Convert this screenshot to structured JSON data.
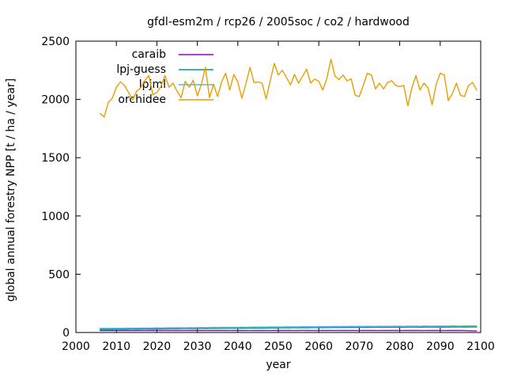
{
  "chart_data": {
    "type": "line",
    "title": "gfdl-esm2m / rcp26 / 2005soc / co2 / hardwood",
    "xlabel": "year",
    "ylabel": "global annual forestry NPP [t / ha / year]",
    "xlim": [
      2000,
      2100
    ],
    "ylim": [
      0,
      2500
    ],
    "xticks": [
      2000,
      2010,
      2020,
      2030,
      2040,
      2050,
      2060,
      2070,
      2080,
      2090,
      2100
    ],
    "yticks": [
      0,
      500,
      1000,
      1500,
      2000,
      2500
    ],
    "grid": false,
    "legend_position": "inside top-left",
    "background_color": "#ffffff",
    "axis_color": "#000000",
    "x_start": 2006,
    "x_step": 1,
    "series": [
      {
        "name": "caraib",
        "color": "#9400d3",
        "values": [
          17,
          16,
          17,
          17,
          16,
          17,
          18,
          17,
          16,
          17,
          17,
          16,
          17,
          18,
          17,
          17,
          16,
          17,
          17,
          18,
          17,
          16,
          17,
          17,
          18,
          17,
          16,
          17,
          17,
          18,
          17,
          17,
          16,
          17,
          18,
          17,
          17,
          16,
          17,
          17,
          18,
          17,
          16,
          17,
          17,
          18,
          17,
          17,
          16,
          17,
          18,
          17,
          17,
          16,
          17,
          17,
          18,
          17,
          16,
          17,
          17,
          18,
          17,
          17,
          16,
          17,
          18,
          17,
          17,
          16,
          17,
          17,
          18,
          17,
          16,
          17,
          17,
          18,
          17,
          17,
          16,
          17,
          18,
          17,
          17,
          16,
          17,
          17,
          18,
          17,
          16,
          15,
          14,
          14
        ]
      },
      {
        "name": "lpj-guess",
        "color": "#009e73",
        "values": [
          27,
          27,
          28,
          27,
          28,
          29,
          28,
          29,
          30,
          29,
          30,
          30,
          31,
          30,
          31,
          32,
          31,
          32,
          33,
          32,
          33,
          33,
          34,
          33,
          34,
          35,
          34,
          35,
          36,
          35,
          36,
          36,
          37,
          36,
          37,
          38,
          37,
          38,
          39,
          38,
          39,
          39,
          40,
          39,
          40,
          41,
          40,
          41,
          42,
          41,
          42,
          41,
          42,
          43,
          42,
          43,
          42,
          43,
          44,
          43,
          44,
          43,
          44,
          45,
          44,
          45,
          44,
          45,
          46,
          45,
          44,
          45,
          46,
          45,
          46,
          45,
          46,
          47,
          46,
          45,
          46,
          47,
          46,
          47,
          46,
          47,
          46,
          47,
          48,
          47,
          46,
          47,
          48,
          47
        ]
      },
      {
        "name": "lpjml",
        "color": "#56b4e9",
        "values": [
          35,
          36,
          35,
          36,
          37,
          36,
          37,
          38,
          37,
          38,
          38,
          39,
          38,
          39,
          40,
          39,
          40,
          41,
          40,
          41,
          41,
          40,
          42,
          41,
          42,
          43,
          42,
          43,
          44,
          43,
          44,
          45,
          44,
          45,
          44,
          46,
          45,
          46,
          47,
          46,
          47,
          46,
          48,
          47,
          48,
          47,
          49,
          48,
          49,
          48,
          50,
          49,
          50,
          49,
          51,
          50,
          51,
          50,
          52,
          51,
          52,
          51,
          53,
          52,
          53,
          52,
          54,
          53,
          52,
          54,
          53,
          54,
          53,
          55,
          54,
          53,
          55,
          54,
          55,
          54,
          56,
          55,
          54,
          56,
          55,
          56,
          55,
          57,
          56,
          55,
          57,
          56,
          57,
          56
        ]
      },
      {
        "name": "orchidee",
        "color": "#e69f00",
        "values": [
          1880,
          1850,
          1975,
          2010,
          2105,
          2150,
          2120,
          2060,
          1995,
          2070,
          2100,
          2160,
          2205,
          2040,
          2060,
          2110,
          2205,
          2105,
          2140,
          2070,
          2015,
          2155,
          2105,
          2165,
          2030,
          2130,
          2275,
          2015,
          2130,
          2025,
          2150,
          2225,
          2080,
          2215,
          2150,
          2010,
          2135,
          2275,
          2145,
          2150,
          2140,
          2005,
          2160,
          2310,
          2210,
          2250,
          2190,
          2125,
          2215,
          2140,
          2200,
          2260,
          2140,
          2175,
          2155,
          2080,
          2180,
          2345,
          2200,
          2170,
          2210,
          2160,
          2175,
          2035,
          2025,
          2120,
          2225,
          2210,
          2090,
          2140,
          2090,
          2145,
          2160,
          2120,
          2110,
          2120,
          1945,
          2100,
          2205,
          2080,
          2140,
          2100,
          1955,
          2130,
          2225,
          2210,
          1990,
          2050,
          2140,
          2035,
          2025,
          2120,
          2145,
          2080
        ]
      }
    ]
  }
}
